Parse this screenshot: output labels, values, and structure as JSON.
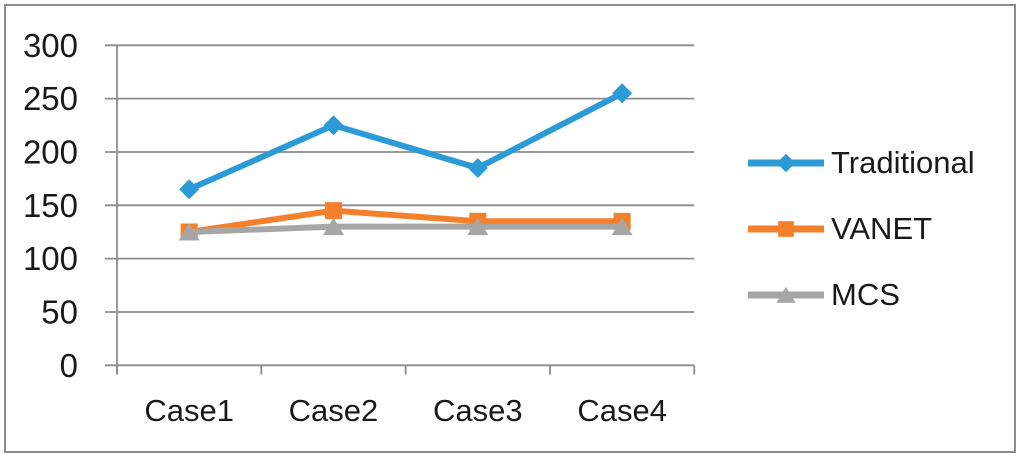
{
  "chart_data": {
    "type": "line",
    "title": "",
    "xlabel": "",
    "ylabel": "",
    "categories": [
      "Case1",
      "Case2",
      "Case3",
      "Case4"
    ],
    "series": [
      {
        "name": "Traditional",
        "values": [
          165,
          225,
          185,
          255
        ],
        "color": "#2b9ad6",
        "marker": "diamond"
      },
      {
        "name": "VANET",
        "values": [
          125,
          145,
          135,
          135
        ],
        "color": "#f5802b",
        "marker": "square"
      },
      {
        "name": "MCS",
        "values": [
          125,
          130,
          130,
          130
        ],
        "color": "#a6a6a6",
        "marker": "triangle"
      }
    ],
    "ylim": [
      0,
      300
    ],
    "yticks": [
      0,
      50,
      100,
      150,
      200,
      250,
      300
    ],
    "grid": true,
    "legend_position": "right",
    "colors": {
      "grid": "#8c8c8c",
      "axis": "#8c8c8c",
      "frame_border": "#8c8c8c",
      "text": "#1a1a1a",
      "background": "#ffffff"
    }
  }
}
